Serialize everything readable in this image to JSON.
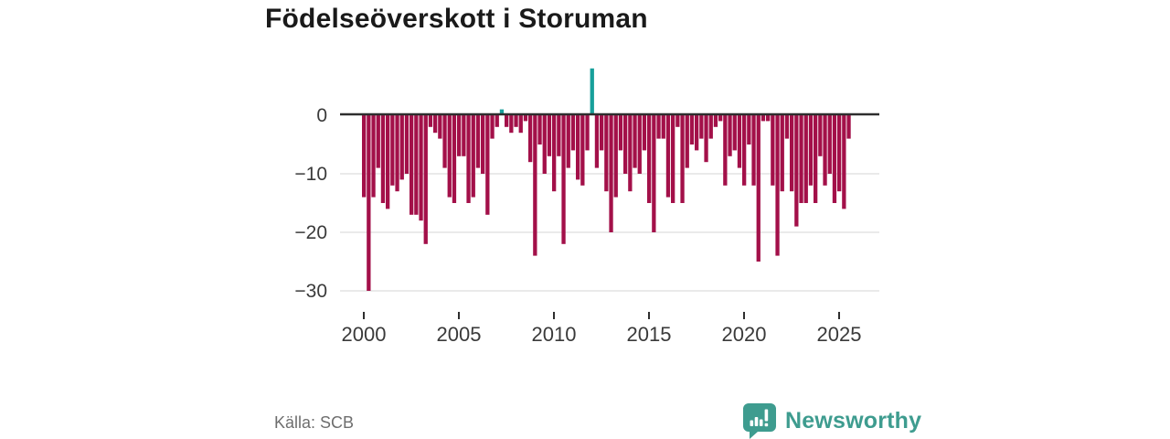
{
  "title": "Födelseöverskott i Storuman",
  "source": "Källa: SCB",
  "brand": {
    "name": "Newsworthy",
    "color": "#3e9c8f"
  },
  "colors": {
    "background": "#ffffff",
    "title_text": "#1a1a1a",
    "axis_text": "#3a3a3a",
    "muted_text": "#6e6e6e",
    "grid_line": "#e4e4e4",
    "zero_line": "#2e2e2e",
    "negative_bar": "#a31049",
    "positive_bar": "#17a09b"
  },
  "chart_data": {
    "type": "bar",
    "title": "Födelseöverskott i Storuman",
    "period": "quarterly",
    "start": "2000-Q1",
    "end": "2025-Q3",
    "xlabel": "",
    "ylabel": "",
    "grid": true,
    "legend": false,
    "ylim": [
      -32,
      10
    ],
    "yticks": [
      0,
      -10,
      -20,
      -30
    ],
    "xticks": [
      2000,
      2005,
      2010,
      2015,
      2020,
      2025
    ],
    "source": "Källa: SCB",
    "values": [
      -14,
      -30,
      -14,
      -9,
      -15,
      -16,
      -12,
      -13,
      -11,
      -10,
      -17,
      -17,
      -18,
      -22,
      -2,
      -3,
      -4,
      -9,
      -14,
      -15,
      -7,
      -7,
      -15,
      -14,
      -9,
      -10,
      -17,
      -4,
      -2,
      1,
      -2,
      -3,
      -2,
      -3,
      -1,
      -8,
      -24,
      -5,
      -10,
      -7,
      -13,
      -7,
      -22,
      -9,
      -6,
      -11,
      -12,
      -6,
      8,
      -9,
      -6,
      -13,
      -20,
      -14,
      -6,
      -10,
      -13,
      -9,
      -10,
      -6,
      -15,
      -20,
      -4,
      -4,
      -14,
      -15,
      -2,
      -15,
      -9,
      -5,
      -6,
      -4,
      -8,
      -4,
      -2,
      -1,
      -12,
      -7,
      -6,
      -9,
      -12,
      -5,
      -12,
      -25,
      -1,
      -1,
      -12,
      -24,
      -13,
      -4,
      -13,
      -19,
      -15,
      -15,
      -12,
      -15,
      -7,
      -12,
      -10,
      -15,
      -13,
      -16,
      -4
    ]
  }
}
